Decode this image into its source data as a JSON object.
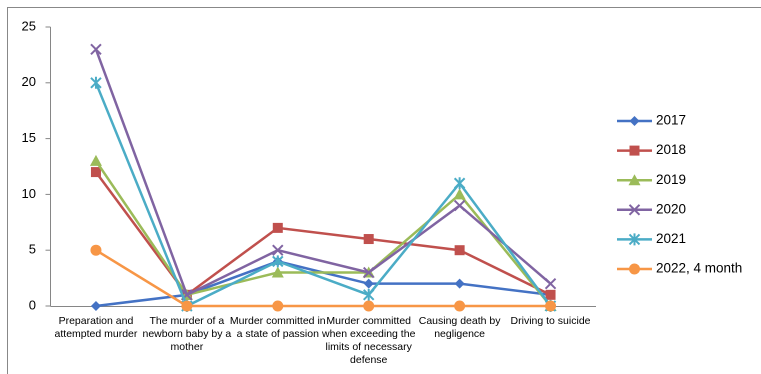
{
  "chart_data": {
    "type": "line",
    "categories": [
      "Preparation and attempted murder",
      "The murder of a newborn baby by a mother",
      "Murder committed in a state of passion",
      "Murder committed when exceeding the limits of necessary defense",
      "Causing death by negligence",
      "Driving to suicide"
    ],
    "series": [
      {
        "name": "2017",
        "color": "#4472c4",
        "marker": "diamond",
        "values": [
          0,
          1,
          4,
          2,
          2,
          1
        ]
      },
      {
        "name": "2018",
        "color": "#c0504d",
        "marker": "square",
        "values": [
          12,
          1,
          7,
          6,
          5,
          1
        ]
      },
      {
        "name": "2019",
        "color": "#9bbb59",
        "marker": "triangle",
        "values": [
          13,
          1,
          3,
          3,
          10,
          0
        ]
      },
      {
        "name": "2020",
        "color": "#8064a2",
        "marker": "x",
        "values": [
          23,
          1,
          5,
          3,
          9,
          2
        ]
      },
      {
        "name": "2021",
        "color": "#4bacc6",
        "marker": "star",
        "values": [
          20,
          0,
          4,
          1,
          11,
          0
        ]
      },
      {
        "name": "2022, 4 month",
        "color": "#f79646",
        "marker": "circle",
        "values": [
          5,
          0,
          0,
          0,
          0,
          0
        ]
      }
    ],
    "ylim": [
      0,
      25
    ],
    "yticks": [
      0,
      5,
      10,
      15,
      20,
      25
    ],
    "grid": false,
    "legend": "right"
  }
}
